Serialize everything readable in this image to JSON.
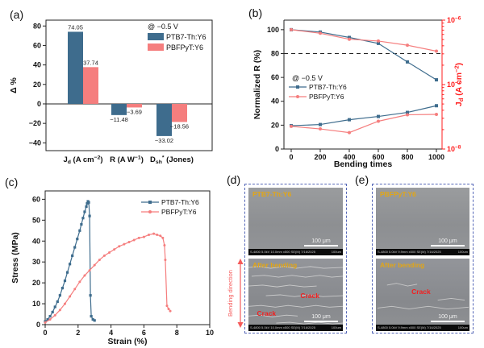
{
  "panel_tags": {
    "a": "(a)",
    "b": "(b)",
    "c": "(c)",
    "d": "(d)",
    "e": "(e)"
  },
  "colors": {
    "blue_series": "#3e6c8d",
    "pink_series": "#f57e7e",
    "right_axis_red": "#ff1e1e",
    "sem_label_yellow": "#e2a616",
    "crack_red": "#f22020",
    "dashed_box_blue": "#5668b8",
    "bend_arrow_red": "#f55a5a"
  },
  "chart_data": [
    {
      "type": "bar",
      "panel": "a",
      "legend_note": "@ −0.5 V",
      "ylabel": "Δ %",
      "ylim": [
        -48,
        86
      ],
      "yticks": [
        -40,
        -20,
        0,
        20,
        40,
        60,
        80
      ],
      "categories": [
        "J_{d} (A cm^{−2})",
        "R (A W^{−1})",
        "D_{sh}^{*} (Jones)"
      ],
      "series": [
        {
          "name": "PTB7-Th:Y6",
          "color": "#3e6c8d",
          "values": [
            74.05,
            -11.48,
            -33.02
          ]
        },
        {
          "name": "PBFPyT:Y6",
          "color": "#f57e7e",
          "values": [
            37.74,
            -3.69,
            -18.56
          ]
        }
      ]
    },
    {
      "type": "line",
      "panel": "b",
      "dual_axis": true,
      "legend_note": "@ −0.5 V",
      "xlabel": "Bending times",
      "x": [
        0,
        200,
        400,
        600,
        800,
        1000
      ],
      "ylabel_left": "Normalized R (%)",
      "ylim_left": [
        0,
        108
      ],
      "yticks_left": [
        0,
        20,
        40,
        60,
        80,
        100
      ],
      "ylabel_right": "J_{d} (A cm^{−2})",
      "right_log_ticks": [
        -6,
        -7,
        -8
      ],
      "ref_line_pct": 80,
      "series": [
        {
          "name": "PTB7-Th:Y6",
          "axis": "left",
          "marker": "square",
          "color": "#3e6c8d",
          "values": [
            100,
            98,
            93.5,
            88.5,
            73,
            58
          ]
        },
        {
          "name": "PBFPyT:Y6",
          "axis": "left",
          "marker": "circle",
          "color": "#f57e7e",
          "values": [
            100,
            97,
            92,
            90.5,
            87,
            82
          ]
        },
        {
          "name": "PTB7-Th:Y6",
          "axis": "right",
          "marker": "square",
          "color": "#3e6c8d",
          "values": [
            2.3e-08,
            2.4e-08,
            2.85e-08,
            3.2e-08,
            3.7e-08,
            4.7e-08
          ]
        },
        {
          "name": "PBFPyT:Y6",
          "axis": "right",
          "marker": "circle",
          "color": "#f57e7e",
          "values": [
            2.25e-08,
            2.05e-08,
            1.8e-08,
            2.7e-08,
            3.4e-08,
            3.45e-08
          ]
        }
      ]
    },
    {
      "type": "line",
      "panel": "c",
      "xlabel": "Strain (%)",
      "ylabel": "Stress (MPa)",
      "xlim": [
        0,
        10
      ],
      "ylim": [
        0,
        64
      ],
      "xticks": [
        0,
        2,
        4,
        6,
        8,
        10
      ],
      "yticks": [
        0,
        10,
        20,
        30,
        40,
        50,
        60
      ],
      "series": [
        {
          "name": "PTB7-Th:Y6",
          "color": "#3e6c8d",
          "marker": "square",
          "points": [
            [
              0,
              1.5
            ],
            [
              0.15,
              2.5
            ],
            [
              0.3,
              4
            ],
            [
              0.45,
              6
            ],
            [
              0.6,
              8.5
            ],
            [
              0.75,
              11
            ],
            [
              0.9,
              14
            ],
            [
              1.05,
              17.5
            ],
            [
              1.2,
              21
            ],
            [
              1.35,
              25
            ],
            [
              1.5,
              29
            ],
            [
              1.65,
              33
            ],
            [
              1.8,
              37
            ],
            [
              1.95,
              41
            ],
            [
              2.1,
              45
            ],
            [
              2.2,
              48
            ],
            [
              2.3,
              51
            ],
            [
              2.4,
              54
            ],
            [
              2.5,
              56.5
            ],
            [
              2.55,
              58
            ],
            [
              2.6,
              59
            ],
            [
              2.65,
              58.5
            ],
            [
              2.7,
              52
            ],
            [
              2.75,
              14
            ],
            [
              2.8,
              4
            ],
            [
              2.9,
              2.5
            ],
            [
              3.0,
              2
            ]
          ]
        },
        {
          "name": "PBFPyT:Y6",
          "color": "#f57e7e",
          "marker": "circle",
          "points": [
            [
              0,
              1
            ],
            [
              0.3,
              2.5
            ],
            [
              0.6,
              4.5
            ],
            [
              0.9,
              7
            ],
            [
              1.2,
              10
            ],
            [
              1.5,
              13.5
            ],
            [
              1.8,
              17
            ],
            [
              2.1,
              20.5
            ],
            [
              2.4,
              23.5
            ],
            [
              2.7,
              26
            ],
            [
              3.0,
              28.5
            ],
            [
              3.3,
              31
            ],
            [
              3.6,
              33
            ],
            [
              3.9,
              34.5
            ],
            [
              4.2,
              36
            ],
            [
              4.5,
              37.5
            ],
            [
              4.8,
              38.5
            ],
            [
              5.1,
              39.5
            ],
            [
              5.4,
              40.5
            ],
            [
              5.7,
              41.5
            ],
            [
              6.0,
              42
            ],
            [
              6.3,
              43
            ],
            [
              6.6,
              43.5
            ],
            [
              6.8,
              43
            ],
            [
              7.0,
              42.5
            ],
            [
              7.15,
              41.5
            ],
            [
              7.25,
              38
            ],
            [
              7.3,
              31
            ],
            [
              7.4,
              9
            ],
            [
              7.5,
              7.5
            ],
            [
              7.6,
              6.5
            ]
          ]
        }
      ]
    }
  ],
  "sem_panels": {
    "scale_bar_text": "100 μm",
    "meta_right": "100um",
    "d": {
      "top_label": "PTB7-Th:Y6",
      "after_label": "After bending",
      "crack_labels": [
        "Crack",
        "Crack"
      ],
      "meta": "S-4800 5.0kV 10.0mm x500 SE(M) 7/16/2025",
      "bending_direction": "Bending direction"
    },
    "e": {
      "top_label": "PBFPyT:Y6",
      "after_label": "After bending",
      "crack_labels": [
        "Crack"
      ],
      "meta": "S-4800 5.0kV 9.9mm x500 SE(M) 7/16/2025"
    }
  }
}
